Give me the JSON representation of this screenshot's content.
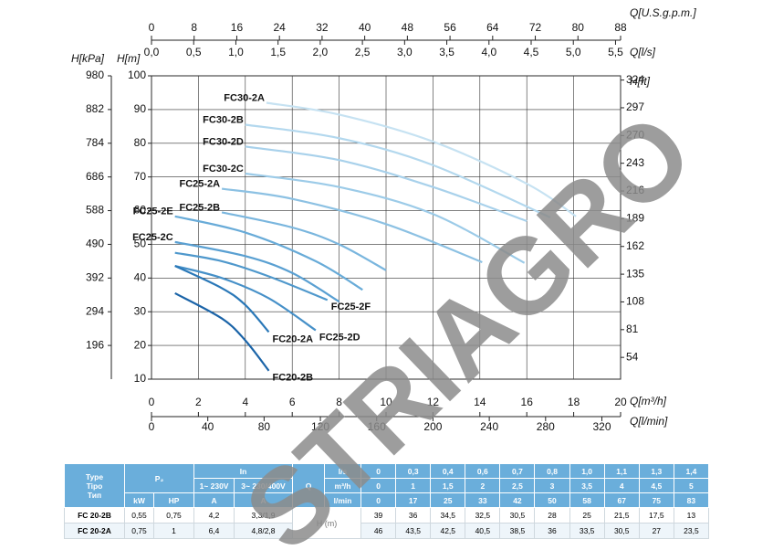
{
  "chart_data": {
    "type": "line",
    "x_label": "Q[m³/h]",
    "y_label": "H[m]",
    "xlim": [
      0,
      20
    ],
    "xticks": [
      0,
      2,
      4,
      6,
      8,
      10,
      12,
      14,
      16,
      18,
      20
    ],
    "ylim": [
      10,
      100
    ],
    "yticks": [
      10,
      20,
      30,
      40,
      50,
      60,
      70,
      80,
      90,
      100
    ],
    "grid": true,
    "extra_axes": [
      {
        "label": "H[kPa]",
        "side": "left",
        "lim": [
          98,
          980
        ],
        "ticks": [
          196,
          294,
          392,
          490,
          588,
          686,
          784,
          882,
          980
        ]
      },
      {
        "label": "H[ft]",
        "side": "right",
        "lim": [
          32.8,
          328.1
        ],
        "ticks": [
          54,
          81,
          108,
          135,
          162,
          189,
          216,
          243,
          270,
          297,
          324
        ]
      },
      {
        "label": "Q[U.S.g.p.m.]",
        "side": "top",
        "lim": [
          0,
          88
        ],
        "ticks": [
          0,
          8,
          16,
          24,
          32,
          40,
          48,
          56,
          64,
          72,
          80,
          88
        ]
      },
      {
        "label": "Q[l/s]",
        "side": "top-inner",
        "lim": [
          0,
          5.56
        ],
        "ticks": [
          {
            "value": 0,
            "label": "0,0"
          },
          {
            "value": 0.5,
            "label": "0,5"
          },
          {
            "value": 1,
            "label": "1,0"
          },
          {
            "value": 1.5,
            "label": "1,5"
          },
          {
            "value": 2,
            "label": "2,0"
          },
          {
            "value": 2.5,
            "label": "2,5"
          },
          {
            "value": 3,
            "label": "3,0"
          },
          {
            "value": 3.5,
            "label": "3,5"
          },
          {
            "value": 4,
            "label": "4,0"
          },
          {
            "value": 4.5,
            "label": "4,5"
          },
          {
            "value": 5,
            "label": "5,0"
          },
          {
            "value": 5.5,
            "label": "5,5"
          }
        ]
      },
      {
        "label": "Q[l/min]",
        "side": "bottom",
        "lim": [
          0,
          333.3
        ],
        "ticks": [
          0,
          40,
          80,
          120,
          160,
          200,
          240,
          280,
          320
        ]
      }
    ],
    "series": [
      {
        "name": "FC30-2A",
        "color": "#c6e2f2",
        "label_at": "start",
        "x": [
          4.9,
          8,
          12,
          16,
          18.1
        ],
        "values": [
          92,
          88.5,
          80.5,
          68,
          58.3
        ]
      },
      {
        "name": "FC30-2B",
        "color": "#b3d8ee",
        "label_at": "start",
        "x": [
          4,
          8,
          12,
          17
        ],
        "values": [
          85.5,
          81.5,
          73.5,
          58
        ]
      },
      {
        "name": "FC30-2D",
        "color": "#a8d1eb",
        "label_at": "start",
        "x": [
          4,
          8,
          12,
          16
        ],
        "values": [
          79,
          75,
          67,
          56.9
        ]
      },
      {
        "name": "FC30-2C",
        "color": "#9ccbe8",
        "label_at": "start",
        "x": [
          4,
          8,
          12,
          15.9
        ],
        "values": [
          71,
          67,
          59,
          44.5
        ]
      },
      {
        "name": "FC25-2A",
        "color": "#8cc1e3",
        "label_at": "start",
        "x": [
          3,
          6,
          10,
          14.1
        ],
        "values": [
          66.5,
          63.5,
          56,
          44.7
        ]
      },
      {
        "name": "FC25-2B",
        "color": "#7ab6de",
        "label_at": "start",
        "x": [
          3,
          6,
          8,
          10
        ],
        "values": [
          59.5,
          55,
          50,
          42.3
        ]
      },
      {
        "name": "FC25-2E",
        "color": "#68abd8",
        "label_at": "start",
        "x": [
          1,
          4,
          7,
          9
        ],
        "values": [
          58.3,
          53.5,
          45,
          36.5
        ]
      },
      {
        "name": "FC25-2C",
        "color": "#5aa0d2",
        "label_at": "start",
        "x": [
          1,
          4,
          6,
          8
        ],
        "values": [
          50.7,
          46.5,
          41.5,
          33
        ]
      },
      {
        "name": "FC25-2F",
        "color": "#4f98cc",
        "label_at": "end",
        "x": [
          1,
          3,
          5,
          7.5
        ],
        "values": [
          47.5,
          45,
          40.5,
          33.5
        ]
      },
      {
        "name": "FC25-2D",
        "color": "#4690c8",
        "label_at": "end",
        "x": [
          1,
          3,
          5,
          7
        ],
        "values": [
          43.6,
          40,
          34,
          24.5
        ]
      },
      {
        "name": "FC20-2A",
        "color": "#2a78b8",
        "label_at": "end",
        "x": [
          1,
          3,
          4,
          5
        ],
        "values": [
          43.6,
          37,
          32,
          24
        ]
      },
      {
        "name": "FC20-2B",
        "color": "#1b64a8",
        "label_at": "end",
        "x": [
          1,
          3,
          4,
          5
        ],
        "values": [
          35.5,
          28,
          21.5,
          12.5
        ]
      }
    ]
  },
  "watermark": "STRIAGRO",
  "table": {
    "type": "Type",
    "tipo": "Tipo",
    "tip": "Тип",
    "p2": "P₂",
    "in": "In",
    "v1": "1~ 230V",
    "v3": "3~ 230/400V",
    "q": "Q",
    "kw": "kW",
    "hp": "HP",
    "a1": "A",
    "a3": "A",
    "u_ls": "l/s",
    "u_m3h": "m³/h",
    "u_lmin": "l/min",
    "h_label": "H (m)",
    "ls": [
      "0",
      "0,3",
      "0,4",
      "0,6",
      "0,7",
      "0,8",
      "1,0",
      "1,1",
      "1,3",
      "1,4"
    ],
    "m3h": [
      "0",
      "1",
      "1,5",
      "2",
      "2,5",
      "3",
      "3,5",
      "4",
      "4,5",
      "5"
    ],
    "lmin": [
      "0",
      "17",
      "25",
      "33",
      "42",
      "50",
      "58",
      "67",
      "75",
      "83"
    ],
    "rows": [
      {
        "type": "FC 20-2B",
        "cells": [
          "0,55",
          "0,75",
          "4,2",
          "3,3/1,9"
        ],
        "h": [
          "39",
          "36",
          "34,5",
          "32,5",
          "30,5",
          "28",
          "25",
          "21,5",
          "17,5",
          "13"
        ]
      },
      {
        "type": "FC 20-2A",
        "cells": [
          "0,75",
          "1",
          "6,4",
          "4,8/2,8"
        ],
        "h": [
          "46",
          "43,5",
          "42,5",
          "40,5",
          "38,5",
          "36",
          "33,5",
          "30,5",
          "27",
          "23,5"
        ]
      }
    ]
  }
}
